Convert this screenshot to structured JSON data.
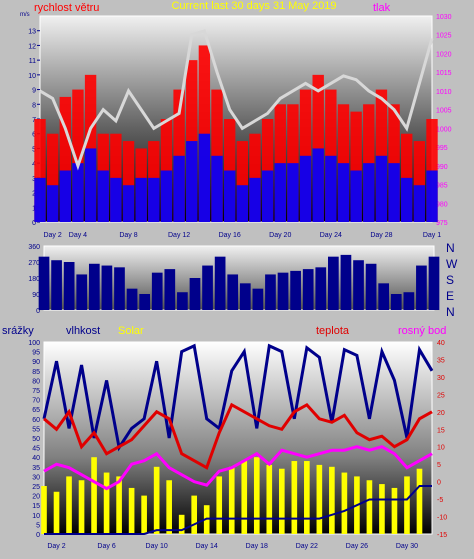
{
  "colors": {
    "background": "#c0c0c0",
    "wind_speed": "#0000ff",
    "gust": "#ff0000",
    "pressure_title": "#ff00ff",
    "pressure_line": "#d8d8d8",
    "wind_dir": "#00008b",
    "humidity": "#00008b",
    "solar": "#ffff00",
    "temperature": "#e00000",
    "dewpoint": "#ff00ff",
    "rain": "#00008b",
    "title": "#ffff00"
  },
  "chart_data": [
    {
      "type": "line",
      "panel": "wind_pressure",
      "title": "Current last 30 days 31 May 2019",
      "left_label": "rychlost větru",
      "right_label": "tlak",
      "y_left_unit": "m/s",
      "ylim_left": [
        0,
        14
      ],
      "ylim_right": [
        975,
        1030
      ],
      "y_left_ticks": [
        0,
        1,
        2,
        3,
        4,
        5,
        6,
        7,
        8,
        9,
        10,
        11,
        12,
        13
      ],
      "y_right_ticks": [
        975,
        980,
        985,
        990,
        995,
        1000,
        1005,
        1010,
        1015,
        1020,
        1025,
        1030
      ],
      "xlim": [
        1,
        32
      ],
      "x_ticks": [
        {
          "x": 2,
          "label": "Day 2"
        },
        {
          "x": 4,
          "label": "Day 4"
        },
        {
          "x": 8,
          "label": "Day 8"
        },
        {
          "x": 12,
          "label": "Day 12"
        },
        {
          "x": 16,
          "label": "Day 16"
        },
        {
          "x": 20,
          "label": "Day 20"
        },
        {
          "x": 24,
          "label": "Day 24"
        },
        {
          "x": 28,
          "label": "Day 28"
        },
        {
          "x": 32,
          "label": "Day 1"
        }
      ],
      "series": [
        {
          "key": "gust",
          "x": [
            1,
            2,
            3,
            4,
            5,
            6,
            7,
            8,
            9,
            10,
            11,
            12,
            13,
            14,
            15,
            16,
            17,
            18,
            19,
            20,
            21,
            22,
            23,
            24,
            25,
            26,
            27,
            28,
            29,
            30,
            31,
            32
          ],
          "values": [
            7,
            6,
            8.5,
            9,
            10,
            6,
            6,
            5.5,
            5,
            5.5,
            7,
            9,
            11,
            12,
            9,
            7,
            5.5,
            6,
            7,
            8,
            8,
            9,
            10,
            9,
            8,
            7.5,
            8,
            9,
            8,
            6,
            5.5,
            7
          ]
        },
        {
          "key": "wind_speed",
          "x": [
            1,
            2,
            3,
            4,
            5,
            6,
            7,
            8,
            9,
            10,
            11,
            12,
            13,
            14,
            15,
            16,
            17,
            18,
            19,
            20,
            21,
            22,
            23,
            24,
            25,
            26,
            27,
            28,
            29,
            30,
            31,
            32
          ],
          "values": [
            3,
            2.5,
            3.5,
            4,
            5,
            3.5,
            3,
            2.5,
            3,
            3,
            3.5,
            4.5,
            5.5,
            6,
            4.5,
            3.5,
            2.5,
            3,
            3.5,
            4,
            4,
            4.5,
            5,
            4.5,
            4,
            3.5,
            4,
            4.5,
            4,
            3,
            2.5,
            3.5
          ]
        },
        {
          "key": "pressure_line",
          "axis": "right",
          "x": [
            1,
            2,
            3,
            4,
            5,
            6,
            7,
            8,
            9,
            10,
            11,
            12,
            13,
            14,
            15,
            16,
            17,
            18,
            19,
            20,
            21,
            22,
            23,
            24,
            25,
            26,
            27,
            28,
            29,
            30,
            31,
            32
          ],
          "values": [
            1010,
            1008,
            1000,
            990,
            1000,
            1005,
            1002,
            1010,
            1005,
            1000,
            1002,
            1004,
            1025,
            1026,
            1015,
            1005,
            1000,
            1002,
            1004,
            1008,
            1010,
            1012,
            1010,
            1012,
            1014,
            1013,
            1010,
            1008,
            1005,
            1000,
            1012,
            1024
          ]
        }
      ]
    },
    {
      "type": "scatter",
      "panel": "wind_direction",
      "ylim": [
        0,
        360
      ],
      "y_ticks": [
        0,
        90,
        180,
        270,
        360
      ],
      "xlim": [
        1,
        32
      ],
      "compass": [
        "N",
        "W",
        "S",
        "E",
        "N"
      ],
      "series": [
        {
          "key": "wind_dir",
          "x": [
            1,
            2,
            3,
            4,
            5,
            6,
            7,
            8,
            9,
            10,
            11,
            12,
            13,
            14,
            15,
            16,
            17,
            18,
            19,
            20,
            21,
            22,
            23,
            24,
            25,
            26,
            27,
            28,
            29,
            30,
            31,
            32
          ],
          "values": [
            300,
            280,
            270,
            200,
            260,
            250,
            240,
            120,
            90,
            210,
            230,
            100,
            180,
            250,
            300,
            200,
            150,
            120,
            200,
            210,
            220,
            230,
            240,
            300,
            310,
            280,
            260,
            150,
            90,
            100,
            250,
            300
          ]
        }
      ]
    },
    {
      "type": "line",
      "panel": "weather",
      "labels": {
        "rain": "srážky",
        "humidity": "vlhkost",
        "solar": "Solar",
        "temperature": "teplota",
        "dewpoint": "rosný bod"
      },
      "ylim_left": [
        0,
        100
      ],
      "ylim_right": [
        -15,
        40
      ],
      "y_left_ticks": [
        0,
        5,
        10,
        15,
        20,
        25,
        30,
        35,
        40,
        45,
        50,
        55,
        60,
        65,
        70,
        75,
        80,
        85,
        90,
        95,
        100
      ],
      "y_right_ticks": [
        -15,
        -10,
        -5,
        0,
        5,
        10,
        15,
        20,
        25,
        30,
        35,
        40
      ],
      "xlim": [
        1,
        32
      ],
      "x_ticks": [
        {
          "x": 2,
          "label": "Day 2"
        },
        {
          "x": 6,
          "label": "Day 6"
        },
        {
          "x": 10,
          "label": "Day 10"
        },
        {
          "x": 14,
          "label": "Day 14"
        },
        {
          "x": 18,
          "label": "Day 18"
        },
        {
          "x": 22,
          "label": "Day 22"
        },
        {
          "x": 26,
          "label": "Day 26"
        },
        {
          "x": 30,
          "label": "Day 30"
        }
      ],
      "series": [
        {
          "key": "solar",
          "style": "bars",
          "x": [
            1,
            2,
            3,
            4,
            5,
            6,
            7,
            8,
            9,
            10,
            11,
            12,
            13,
            14,
            15,
            16,
            17,
            18,
            19,
            20,
            21,
            22,
            23,
            24,
            25,
            26,
            27,
            28,
            29,
            30,
            31
          ],
          "values": [
            25,
            22,
            30,
            28,
            40,
            32,
            30,
            24,
            20,
            35,
            28,
            10,
            20,
            15,
            30,
            35,
            38,
            40,
            36,
            34,
            38,
            38,
            36,
            35,
            32,
            30,
            28,
            26,
            24,
            30,
            34
          ]
        },
        {
          "key": "humidity",
          "x": [
            1,
            2,
            3,
            4,
            5,
            6,
            7,
            8,
            9,
            10,
            11,
            12,
            13,
            14,
            15,
            16,
            17,
            18,
            19,
            20,
            21,
            22,
            23,
            24,
            25,
            26,
            27,
            28,
            29,
            30,
            31,
            32
          ],
          "values": [
            60,
            90,
            55,
            88,
            50,
            80,
            45,
            55,
            60,
            90,
            50,
            95,
            98,
            60,
            55,
            85,
            95,
            55,
            98,
            95,
            60,
            97,
            92,
            58,
            96,
            93,
            60,
            95,
            80,
            50,
            96,
            85
          ]
        },
        {
          "key": "temperature",
          "axis": "right",
          "x": [
            1,
            2,
            3,
            4,
            5,
            6,
            7,
            8,
            9,
            10,
            11,
            12,
            13,
            14,
            15,
            16,
            17,
            18,
            19,
            20,
            21,
            22,
            23,
            24,
            25,
            26,
            27,
            28,
            29,
            30,
            31,
            32
          ],
          "values": [
            18,
            15,
            20,
            10,
            14,
            8,
            10,
            12,
            16,
            20,
            18,
            8,
            6,
            4,
            14,
            22,
            20,
            18,
            16,
            15,
            20,
            22,
            18,
            17,
            19,
            14,
            12,
            13,
            10,
            12,
            18,
            20
          ]
        },
        {
          "key": "dewpoint",
          "axis": "right",
          "x": [
            1,
            2,
            3,
            4,
            5,
            6,
            7,
            8,
            9,
            10,
            11,
            12,
            13,
            14,
            15,
            16,
            17,
            18,
            19,
            20,
            21,
            22,
            23,
            24,
            25,
            26,
            27,
            28,
            29,
            30,
            31,
            32
          ],
          "values": [
            3,
            5,
            4,
            2,
            0,
            -2,
            0,
            5,
            6,
            8,
            4,
            2,
            0,
            -1,
            3,
            4,
            6,
            8,
            5,
            9,
            8,
            7,
            8,
            9,
            9,
            10,
            9,
            10,
            8,
            4,
            6,
            8
          ]
        },
        {
          "key": "rain",
          "axis": "left",
          "x": [
            1,
            2,
            3,
            4,
            5,
            6,
            7,
            8,
            9,
            10,
            11,
            12,
            13,
            14,
            15,
            16,
            17,
            18,
            19,
            20,
            21,
            22,
            23,
            24,
            25,
            26,
            27,
            28,
            29,
            30,
            31,
            32
          ],
          "values": [
            0,
            0,
            0,
            0,
            0,
            0,
            0,
            0,
            0,
            2,
            2,
            2,
            5,
            8,
            8,
            8,
            8,
            8,
            8,
            8,
            8,
            8,
            8,
            10,
            12,
            15,
            18,
            18,
            18,
            18,
            25,
            25
          ]
        }
      ]
    }
  ]
}
